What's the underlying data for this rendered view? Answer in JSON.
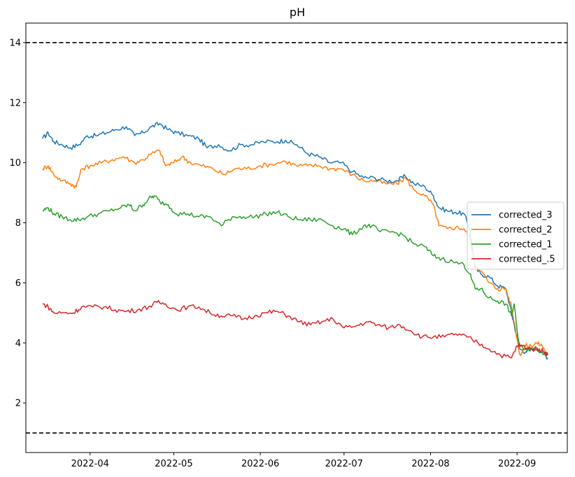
{
  "chart_data": {
    "type": "line",
    "title": "pH",
    "xlabel": "",
    "ylabel": "",
    "x_range": [
      "2022-03-09",
      "2022-09-19"
    ],
    "ylim": [
      0.35,
      14.65
    ],
    "yticks": [
      2,
      4,
      6,
      8,
      10,
      12,
      14
    ],
    "xticks": [
      "2022-04",
      "2022-05",
      "2022-06",
      "2022-07",
      "2022-08",
      "2022-09"
    ],
    "grid": false,
    "legend_position": "center-right",
    "reference_lines": [
      {
        "y": 14,
        "style": "dashed",
        "color": "#000000"
      },
      {
        "y": 1,
        "style": "dashed",
        "color": "#000000"
      }
    ],
    "series": [
      {
        "name": "corrected_3",
        "color": "#1f77b4",
        "points": [
          [
            "2022-03-15",
            10.8
          ],
          [
            "2022-03-17",
            11.0
          ],
          [
            "2022-03-19",
            10.7
          ],
          [
            "2022-03-22",
            10.6
          ],
          [
            "2022-03-25",
            10.5
          ],
          [
            "2022-03-28",
            10.6
          ],
          [
            "2022-03-31",
            10.9
          ],
          [
            "2022-04-03",
            10.9
          ],
          [
            "2022-04-07",
            11.0
          ],
          [
            "2022-04-10",
            11.1
          ],
          [
            "2022-04-14",
            11.2
          ],
          [
            "2022-04-17",
            10.9
          ],
          [
            "2022-04-20",
            11.0
          ],
          [
            "2022-04-23",
            11.2
          ],
          [
            "2022-04-26",
            11.3
          ],
          [
            "2022-04-29",
            11.1
          ],
          [
            "2022-05-02",
            11.0
          ],
          [
            "2022-05-06",
            10.9
          ],
          [
            "2022-05-10",
            10.8
          ],
          [
            "2022-05-13",
            10.5
          ],
          [
            "2022-05-17",
            10.6
          ],
          [
            "2022-05-21",
            10.4
          ],
          [
            "2022-05-25",
            10.6
          ],
          [
            "2022-05-29",
            10.6
          ],
          [
            "2022-06-02",
            10.7
          ],
          [
            "2022-06-07",
            10.7
          ],
          [
            "2022-06-10",
            10.75
          ],
          [
            "2022-06-14",
            10.6
          ],
          [
            "2022-06-18",
            10.3
          ],
          [
            "2022-06-22",
            10.2
          ],
          [
            "2022-06-26",
            10.0
          ],
          [
            "2022-06-30",
            10.0
          ],
          [
            "2022-07-04",
            9.7
          ],
          [
            "2022-07-08",
            9.5
          ],
          [
            "2022-07-12",
            9.5
          ],
          [
            "2022-07-16",
            9.4
          ],
          [
            "2022-07-20",
            9.4
          ],
          [
            "2022-07-23",
            9.55
          ],
          [
            "2022-07-26",
            9.3
          ],
          [
            "2022-07-30",
            9.2
          ],
          [
            "2022-08-02",
            8.9
          ],
          [
            "2022-08-04",
            8.5
          ],
          [
            "2022-08-07",
            8.4
          ],
          [
            "2022-08-10",
            8.35
          ],
          [
            "2022-08-13",
            8.3
          ],
          [
            "2022-08-15",
            7.8
          ],
          [
            "2022-08-17",
            6.5
          ],
          [
            "2022-08-19",
            6.3
          ],
          [
            "2022-08-22",
            6.2
          ],
          [
            "2022-08-25",
            5.9
          ],
          [
            "2022-08-28",
            5.8
          ],
          [
            "2022-08-30",
            5.0
          ],
          [
            "2022-08-31",
            4.6
          ],
          [
            "2022-09-02",
            3.8
          ],
          [
            "2022-09-04",
            3.7
          ],
          [
            "2022-09-06",
            3.8
          ],
          [
            "2022-09-08",
            3.8
          ],
          [
            "2022-09-10",
            3.7
          ],
          [
            "2022-09-12",
            3.5
          ]
        ]
      },
      {
        "name": "corrected_2",
        "color": "#ff7f0e",
        "points": [
          [
            "2022-03-15",
            9.8
          ],
          [
            "2022-03-17",
            9.9
          ],
          [
            "2022-03-19",
            9.6
          ],
          [
            "2022-03-22",
            9.4
          ],
          [
            "2022-03-25",
            9.3
          ],
          [
            "2022-03-27",
            9.2
          ],
          [
            "2022-03-29",
            9.8
          ],
          [
            "2022-04-01",
            9.9
          ],
          [
            "2022-04-05",
            10.0
          ],
          [
            "2022-04-09",
            10.1
          ],
          [
            "2022-04-13",
            10.2
          ],
          [
            "2022-04-17",
            10.0
          ],
          [
            "2022-04-20",
            10.1
          ],
          [
            "2022-04-23",
            10.3
          ],
          [
            "2022-04-26",
            10.4
          ],
          [
            "2022-04-28",
            9.9
          ],
          [
            "2022-05-01",
            10.0
          ],
          [
            "2022-05-04",
            10.2
          ],
          [
            "2022-05-07",
            10.0
          ],
          [
            "2022-05-11",
            9.9
          ],
          [
            "2022-05-15",
            9.8
          ],
          [
            "2022-05-19",
            9.6
          ],
          [
            "2022-05-23",
            9.8
          ],
          [
            "2022-05-27",
            9.8
          ],
          [
            "2022-06-01",
            9.9
          ],
          [
            "2022-06-05",
            9.95
          ],
          [
            "2022-06-10",
            10.05
          ],
          [
            "2022-06-14",
            9.9
          ],
          [
            "2022-06-18",
            9.9
          ],
          [
            "2022-06-22",
            9.9
          ],
          [
            "2022-06-26",
            9.8
          ],
          [
            "2022-06-30",
            9.8
          ],
          [
            "2022-07-04",
            9.6
          ],
          [
            "2022-07-08",
            9.4
          ],
          [
            "2022-07-12",
            9.4
          ],
          [
            "2022-07-16",
            9.3
          ],
          [
            "2022-07-20",
            9.3
          ],
          [
            "2022-07-23",
            9.5
          ],
          [
            "2022-07-26",
            9.1
          ],
          [
            "2022-07-30",
            8.9
          ],
          [
            "2022-08-02",
            8.6
          ],
          [
            "2022-08-04",
            7.9
          ],
          [
            "2022-08-07",
            7.8
          ],
          [
            "2022-08-10",
            7.85
          ],
          [
            "2022-08-13",
            7.8
          ],
          [
            "2022-08-15",
            7.5
          ],
          [
            "2022-08-17",
            6.6
          ],
          [
            "2022-08-19",
            6.4
          ],
          [
            "2022-08-22",
            6.0
          ],
          [
            "2022-08-25",
            5.8
          ],
          [
            "2022-08-28",
            5.8
          ],
          [
            "2022-08-30",
            5.2
          ],
          [
            "2022-08-31",
            4.7
          ],
          [
            "2022-09-02",
            3.6
          ],
          [
            "2022-09-04",
            3.9
          ],
          [
            "2022-09-06",
            3.9
          ],
          [
            "2022-09-08",
            4.0
          ],
          [
            "2022-09-10",
            3.9
          ],
          [
            "2022-09-12",
            3.6
          ]
        ]
      },
      {
        "name": "corrected_1",
        "color": "#2ca02c",
        "points": [
          [
            "2022-03-15",
            8.4
          ],
          [
            "2022-03-17",
            8.5
          ],
          [
            "2022-03-19",
            8.3
          ],
          [
            "2022-03-22",
            8.2
          ],
          [
            "2022-03-25",
            8.1
          ],
          [
            "2022-03-28",
            8.1
          ],
          [
            "2022-03-31",
            8.2
          ],
          [
            "2022-04-04",
            8.3
          ],
          [
            "2022-04-08",
            8.4
          ],
          [
            "2022-04-12",
            8.5
          ],
          [
            "2022-04-15",
            8.6
          ],
          [
            "2022-04-17",
            8.4
          ],
          [
            "2022-04-20",
            8.6
          ],
          [
            "2022-04-22",
            8.8
          ],
          [
            "2022-04-24",
            8.9
          ],
          [
            "2022-04-26",
            8.7
          ],
          [
            "2022-04-29",
            8.6
          ],
          [
            "2022-05-02",
            8.3
          ],
          [
            "2022-05-06",
            8.3
          ],
          [
            "2022-05-10",
            8.2
          ],
          [
            "2022-05-14",
            8.2
          ],
          [
            "2022-05-18",
            7.9
          ],
          [
            "2022-05-22",
            8.2
          ],
          [
            "2022-05-26",
            8.2
          ],
          [
            "2022-05-30",
            8.2
          ],
          [
            "2022-06-03",
            8.3
          ],
          [
            "2022-06-07",
            8.35
          ],
          [
            "2022-06-11",
            8.2
          ],
          [
            "2022-06-15",
            8.1
          ],
          [
            "2022-06-19",
            8.1
          ],
          [
            "2022-06-23",
            8.1
          ],
          [
            "2022-06-27",
            7.9
          ],
          [
            "2022-07-01",
            7.8
          ],
          [
            "2022-07-04",
            7.6
          ],
          [
            "2022-07-08",
            7.9
          ],
          [
            "2022-07-11",
            7.9
          ],
          [
            "2022-07-14",
            7.7
          ],
          [
            "2022-07-18",
            7.7
          ],
          [
            "2022-07-22",
            7.6
          ],
          [
            "2022-07-26",
            7.3
          ],
          [
            "2022-07-30",
            7.2
          ],
          [
            "2022-08-02",
            6.9
          ],
          [
            "2022-08-05",
            6.8
          ],
          [
            "2022-08-09",
            6.7
          ],
          [
            "2022-08-13",
            6.6
          ],
          [
            "2022-08-15",
            6.3
          ],
          [
            "2022-08-17",
            5.8
          ],
          [
            "2022-08-19",
            5.8
          ],
          [
            "2022-08-22",
            5.5
          ],
          [
            "2022-08-25",
            5.4
          ],
          [
            "2022-08-28",
            5.3
          ],
          [
            "2022-08-30",
            4.9
          ],
          [
            "2022-08-31",
            5.3
          ],
          [
            "2022-09-01",
            4.4
          ],
          [
            "2022-09-02",
            3.9
          ],
          [
            "2022-09-04",
            3.8
          ],
          [
            "2022-09-06",
            3.8
          ],
          [
            "2022-09-08",
            3.8
          ],
          [
            "2022-09-10",
            3.7
          ],
          [
            "2022-09-12",
            3.6
          ]
        ]
      },
      {
        "name": "corrected_.5",
        "color": "#d62728",
        "points": [
          [
            "2022-03-15",
            5.3
          ],
          [
            "2022-03-17",
            5.2
          ],
          [
            "2022-03-19",
            5.0
          ],
          [
            "2022-03-23",
            5.0
          ],
          [
            "2022-03-26",
            5.0
          ],
          [
            "2022-03-29",
            5.2
          ],
          [
            "2022-04-02",
            5.2
          ],
          [
            "2022-04-06",
            5.2
          ],
          [
            "2022-04-10",
            5.1
          ],
          [
            "2022-04-14",
            5.05
          ],
          [
            "2022-04-18",
            5.1
          ],
          [
            "2022-04-22",
            5.2
          ],
          [
            "2022-04-25",
            5.35
          ],
          [
            "2022-04-28",
            5.3
          ],
          [
            "2022-05-02",
            5.1
          ],
          [
            "2022-05-06",
            5.2
          ],
          [
            "2022-05-10",
            5.2
          ],
          [
            "2022-05-14",
            5.0
          ],
          [
            "2022-05-18",
            4.9
          ],
          [
            "2022-05-22",
            4.9
          ],
          [
            "2022-05-26",
            4.8
          ],
          [
            "2022-05-30",
            4.9
          ],
          [
            "2022-06-03",
            5.0
          ],
          [
            "2022-06-07",
            5.05
          ],
          [
            "2022-06-11",
            4.9
          ],
          [
            "2022-06-15",
            4.7
          ],
          [
            "2022-06-19",
            4.6
          ],
          [
            "2022-06-23",
            4.7
          ],
          [
            "2022-06-27",
            4.8
          ],
          [
            "2022-07-01",
            4.5
          ],
          [
            "2022-07-05",
            4.55
          ],
          [
            "2022-07-09",
            4.7
          ],
          [
            "2022-07-13",
            4.6
          ],
          [
            "2022-07-17",
            4.5
          ],
          [
            "2022-07-21",
            4.6
          ],
          [
            "2022-07-25",
            4.4
          ],
          [
            "2022-07-29",
            4.2
          ],
          [
            "2022-08-02",
            4.2
          ],
          [
            "2022-08-06",
            4.2
          ],
          [
            "2022-08-10",
            4.3
          ],
          [
            "2022-08-14",
            4.2
          ],
          [
            "2022-08-18",
            4.0
          ],
          [
            "2022-08-22",
            3.8
          ],
          [
            "2022-08-26",
            3.6
          ],
          [
            "2022-08-30",
            3.5
          ],
          [
            "2022-09-01",
            3.9
          ],
          [
            "2022-09-03",
            3.9
          ],
          [
            "2022-09-06",
            3.8
          ],
          [
            "2022-09-09",
            3.8
          ],
          [
            "2022-09-11",
            3.7
          ],
          [
            "2022-09-12",
            3.6
          ]
        ]
      }
    ]
  }
}
